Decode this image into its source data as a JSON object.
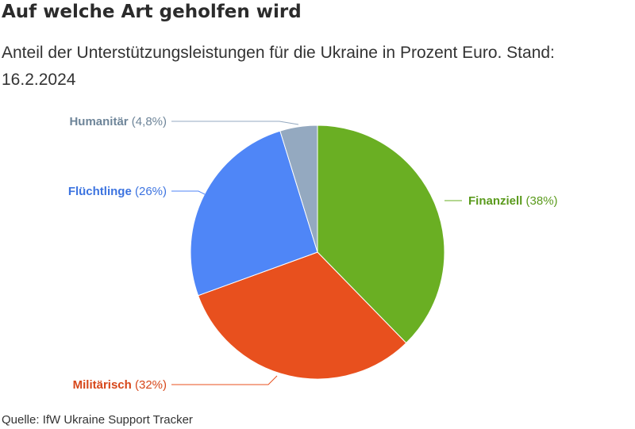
{
  "chart_data": {
    "type": "pie",
    "title": "Auf welche Art geholfen wird",
    "subtitle": "Anteil der Unterstützungsleistungen für die Ukraine in Prozent Euro. Stand: 16.2.2024",
    "source": "Quelle: IfW Ukraine Support Tracker",
    "slices": [
      {
        "name": "Finanziell",
        "value": 38,
        "pct_label": "(38%)",
        "color": "#6aaf23"
      },
      {
        "name": "Militärisch",
        "value": 32,
        "pct_label": "(32%)",
        "color": "#e8501e"
      },
      {
        "name": "Flüchtlinge",
        "value": 26,
        "pct_label": "(26%)",
        "color": "#4f86f7"
      },
      {
        "name": "Humanitär",
        "value": 4.8,
        "pct_label": "(4,8%)",
        "color": "#94a9c0"
      }
    ]
  }
}
